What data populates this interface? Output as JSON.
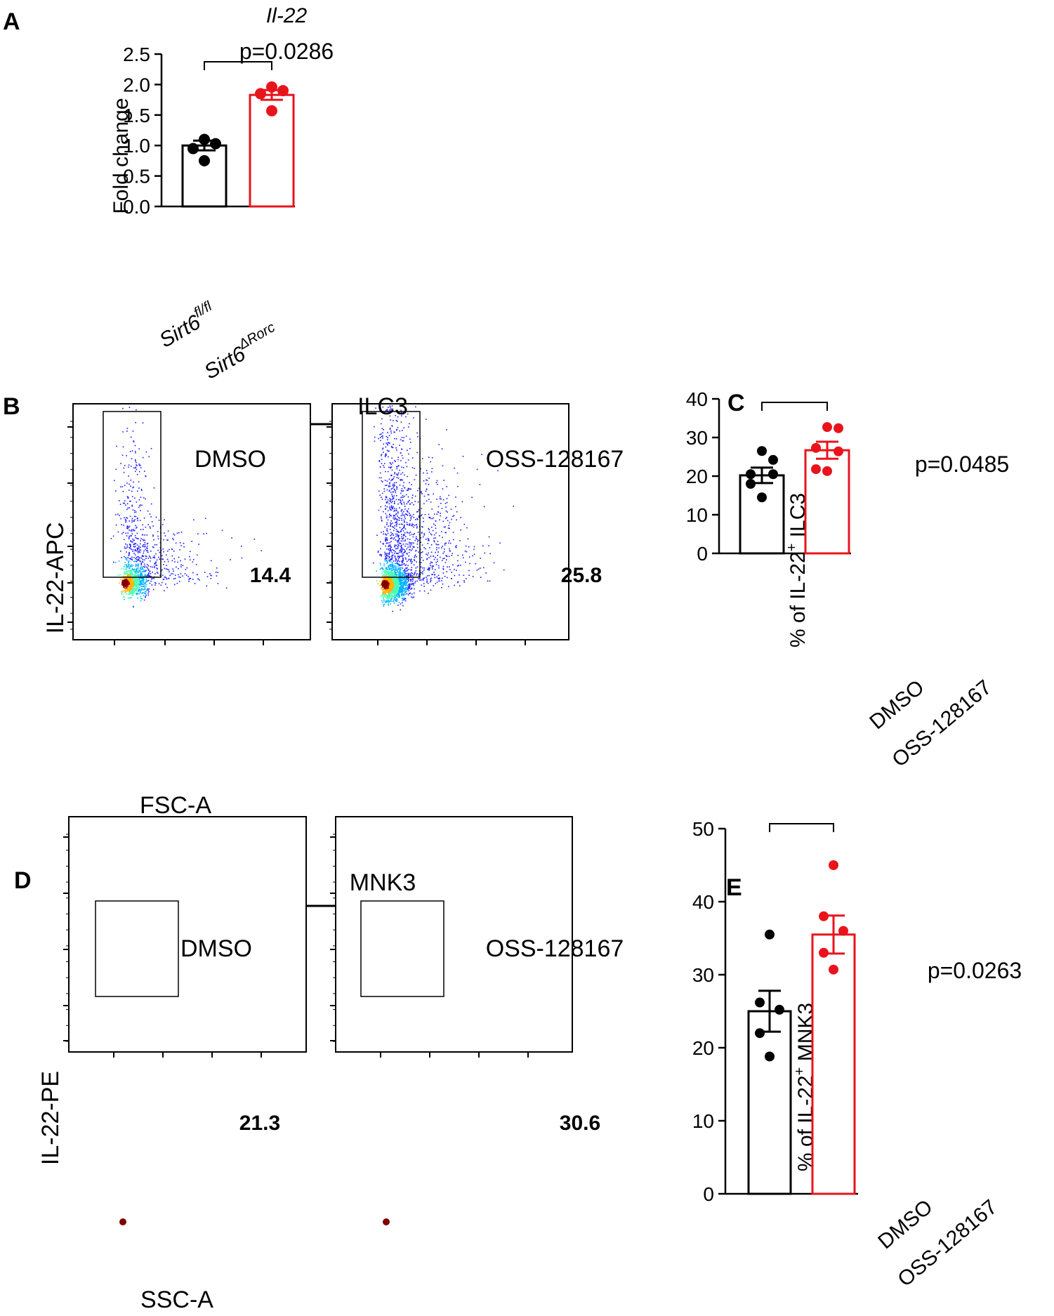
{
  "panels": {
    "A": "A",
    "B": "B",
    "C": "C",
    "D": "D",
    "E": "E"
  },
  "colors": {
    "control": "#000000",
    "treatment": "#e8141c"
  },
  "chart_data": [
    {
      "id": "A",
      "type": "bar",
      "title": "Il-22",
      "ylabel": "Fold change",
      "ylim": [
        0,
        2.5
      ],
      "yticks": [
        0,
        0.5,
        1,
        1.5,
        2,
        2.5
      ],
      "ytick_labels": [
        "0.0",
        "0.5",
        "1.0",
        "1.5",
        "2.0",
        "2.5"
      ],
      "pvalue": "p=0.0286",
      "categories": [
        {
          "base": "Sirt6",
          "sup": "fl/fl"
        },
        {
          "base": "Sirt6",
          "sup": "ΔRorc"
        }
      ],
      "series": [
        {
          "name": "Sirt6 fl/fl",
          "mean": 1.0,
          "sem": 0.08,
          "points": [
            0.75,
            0.95,
            1.03,
            1.1
          ]
        },
        {
          "name": "Sirt6 ΔRorc",
          "mean": 1.83,
          "sem": 0.08,
          "points": [
            1.57,
            1.85,
            1.9,
            1.96
          ]
        }
      ]
    },
    {
      "id": "C",
      "type": "bar",
      "ylabel_pre": "% of IL-22",
      "ylabel_sup": "+",
      "ylabel_post": " ILC3",
      "ylim": [
        0,
        40
      ],
      "yticks": [
        0,
        10,
        20,
        30,
        40
      ],
      "ytick_labels": [
        "0",
        "10",
        "20",
        "30",
        "40"
      ],
      "pvalue": "p=0.0485",
      "categories": [
        "DMSO",
        "OSS-128167"
      ],
      "series": [
        {
          "name": "DMSO",
          "mean": 20.2,
          "sem": 2.0,
          "points": [
            14.5,
            18.0,
            20.5,
            20.5,
            24.2,
            26.5
          ]
        },
        {
          "name": "OSS-128167",
          "mean": 26.7,
          "sem": 2.2,
          "points": [
            21.3,
            21.8,
            26.4,
            27.3,
            32.4,
            32.7
          ]
        }
      ]
    },
    {
      "id": "E",
      "type": "bar",
      "ylabel_pre": "% of IL-22",
      "ylabel_sup": "+",
      "ylabel_post": " MNK3",
      "ylim": [
        0,
        50
      ],
      "yticks": [
        0,
        10,
        20,
        30,
        40,
        50
      ],
      "ytick_labels": [
        "0",
        "10",
        "20",
        "30",
        "40",
        "50"
      ],
      "pvalue": "p=0.0263",
      "categories": [
        "DMSO",
        "OSS-128167"
      ],
      "series": [
        {
          "name": "DMSO",
          "mean": 25.0,
          "sem": 2.8,
          "points": [
            18.8,
            22.0,
            25.2,
            26.2,
            35.5
          ]
        },
        {
          "name": "OSS-128167",
          "mean": 35.5,
          "sem": 2.6,
          "points": [
            30.7,
            33.0,
            36.0,
            38.0,
            45.0
          ]
        }
      ]
    }
  ],
  "flow_B": {
    "header": "ILC3",
    "ylabel": "IL-22-APC",
    "xlabel": "FSC-A",
    "plots": [
      {
        "condition": "DMSO",
        "gate_value": "14.4"
      },
      {
        "condition": "OSS-128167",
        "gate_value": "25.8"
      }
    ]
  },
  "flow_D": {
    "header": "MNK3",
    "ylabel": "IL-22-PE",
    "xlabel": "SSC-A",
    "plots": [
      {
        "condition": "DMSO",
        "gate_value": "21.3"
      },
      {
        "condition": "OSS-128167",
        "gate_value": "30.6"
      }
    ]
  }
}
